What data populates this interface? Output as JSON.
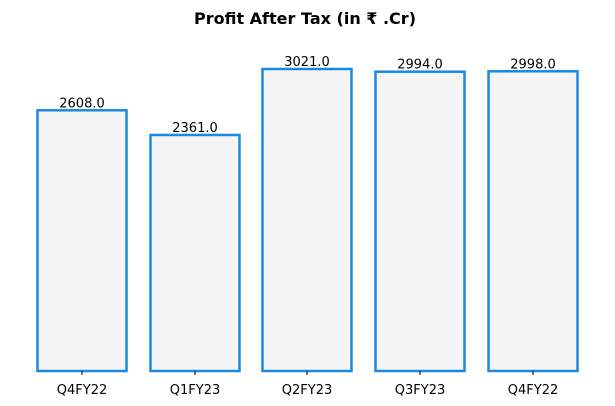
{
  "chart_data": {
    "type": "bar",
    "title": "Profit After Tax (in ₹ .Cr)",
    "xlabel": "",
    "ylabel": "",
    "categories": [
      "Q4FY22",
      "Q1FY23",
      "Q2FY23",
      "Q3FY23",
      "Q4FY22"
    ],
    "values": [
      2608.0,
      2361.0,
      3021.0,
      2994.0,
      2998.0
    ],
    "value_labels": [
      "2608.0",
      "2361.0",
      "3021.0",
      "2994.0",
      "2998.0"
    ],
    "ylim": [
      0,
      3021
    ],
    "grid": false,
    "legend": "none",
    "colors": {
      "bar_fill": "#f5f5f5",
      "bar_edge": "#1a8ae0",
      "text": "#000000",
      "tick": "#000000"
    }
  }
}
